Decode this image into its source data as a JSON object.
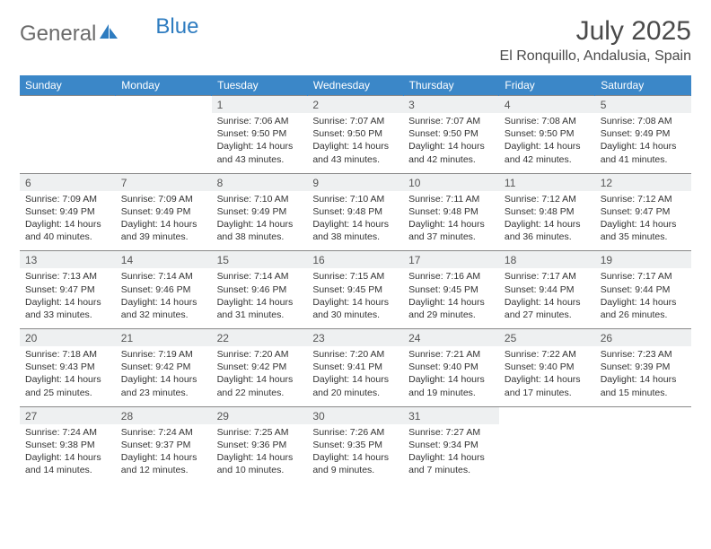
{
  "logo": {
    "textGray": "General",
    "textBlue": "Blue"
  },
  "title": "July 2025",
  "location": "El Ronquillo, Andalusia, Spain",
  "colors": {
    "headerBg": "#3b87c8",
    "daynumBg": "#eef0f1",
    "bodyText": "#333333",
    "titleText": "#4a4a4a",
    "logoGray": "#6b6b6b",
    "logoBlue": "#2e7cc0",
    "border": "#888888"
  },
  "dayHeaders": [
    "Sunday",
    "Monday",
    "Tuesday",
    "Wednesday",
    "Thursday",
    "Friday",
    "Saturday"
  ],
  "weeks": [
    [
      null,
      null,
      {
        "n": "1",
        "sunrise": "7:06 AM",
        "sunset": "9:50 PM",
        "daylight": "14 hours and 43 minutes."
      },
      {
        "n": "2",
        "sunrise": "7:07 AM",
        "sunset": "9:50 PM",
        "daylight": "14 hours and 43 minutes."
      },
      {
        "n": "3",
        "sunrise": "7:07 AM",
        "sunset": "9:50 PM",
        "daylight": "14 hours and 42 minutes."
      },
      {
        "n": "4",
        "sunrise": "7:08 AM",
        "sunset": "9:50 PM",
        "daylight": "14 hours and 42 minutes."
      },
      {
        "n": "5",
        "sunrise": "7:08 AM",
        "sunset": "9:49 PM",
        "daylight": "14 hours and 41 minutes."
      }
    ],
    [
      {
        "n": "6",
        "sunrise": "7:09 AM",
        "sunset": "9:49 PM",
        "daylight": "14 hours and 40 minutes."
      },
      {
        "n": "7",
        "sunrise": "7:09 AM",
        "sunset": "9:49 PM",
        "daylight": "14 hours and 39 minutes."
      },
      {
        "n": "8",
        "sunrise": "7:10 AM",
        "sunset": "9:49 PM",
        "daylight": "14 hours and 38 minutes."
      },
      {
        "n": "9",
        "sunrise": "7:10 AM",
        "sunset": "9:48 PM",
        "daylight": "14 hours and 38 minutes."
      },
      {
        "n": "10",
        "sunrise": "7:11 AM",
        "sunset": "9:48 PM",
        "daylight": "14 hours and 37 minutes."
      },
      {
        "n": "11",
        "sunrise": "7:12 AM",
        "sunset": "9:48 PM",
        "daylight": "14 hours and 36 minutes."
      },
      {
        "n": "12",
        "sunrise": "7:12 AM",
        "sunset": "9:47 PM",
        "daylight": "14 hours and 35 minutes."
      }
    ],
    [
      {
        "n": "13",
        "sunrise": "7:13 AM",
        "sunset": "9:47 PM",
        "daylight": "14 hours and 33 minutes."
      },
      {
        "n": "14",
        "sunrise": "7:14 AM",
        "sunset": "9:46 PM",
        "daylight": "14 hours and 32 minutes."
      },
      {
        "n": "15",
        "sunrise": "7:14 AM",
        "sunset": "9:46 PM",
        "daylight": "14 hours and 31 minutes."
      },
      {
        "n": "16",
        "sunrise": "7:15 AM",
        "sunset": "9:45 PM",
        "daylight": "14 hours and 30 minutes."
      },
      {
        "n": "17",
        "sunrise": "7:16 AM",
        "sunset": "9:45 PM",
        "daylight": "14 hours and 29 minutes."
      },
      {
        "n": "18",
        "sunrise": "7:17 AM",
        "sunset": "9:44 PM",
        "daylight": "14 hours and 27 minutes."
      },
      {
        "n": "19",
        "sunrise": "7:17 AM",
        "sunset": "9:44 PM",
        "daylight": "14 hours and 26 minutes."
      }
    ],
    [
      {
        "n": "20",
        "sunrise": "7:18 AM",
        "sunset": "9:43 PM",
        "daylight": "14 hours and 25 minutes."
      },
      {
        "n": "21",
        "sunrise": "7:19 AM",
        "sunset": "9:42 PM",
        "daylight": "14 hours and 23 minutes."
      },
      {
        "n": "22",
        "sunrise": "7:20 AM",
        "sunset": "9:42 PM",
        "daylight": "14 hours and 22 minutes."
      },
      {
        "n": "23",
        "sunrise": "7:20 AM",
        "sunset": "9:41 PM",
        "daylight": "14 hours and 20 minutes."
      },
      {
        "n": "24",
        "sunrise": "7:21 AM",
        "sunset": "9:40 PM",
        "daylight": "14 hours and 19 minutes."
      },
      {
        "n": "25",
        "sunrise": "7:22 AM",
        "sunset": "9:40 PM",
        "daylight": "14 hours and 17 minutes."
      },
      {
        "n": "26",
        "sunrise": "7:23 AM",
        "sunset": "9:39 PM",
        "daylight": "14 hours and 15 minutes."
      }
    ],
    [
      {
        "n": "27",
        "sunrise": "7:24 AM",
        "sunset": "9:38 PM",
        "daylight": "14 hours and 14 minutes."
      },
      {
        "n": "28",
        "sunrise": "7:24 AM",
        "sunset": "9:37 PM",
        "daylight": "14 hours and 12 minutes."
      },
      {
        "n": "29",
        "sunrise": "7:25 AM",
        "sunset": "9:36 PM",
        "daylight": "14 hours and 10 minutes."
      },
      {
        "n": "30",
        "sunrise": "7:26 AM",
        "sunset": "9:35 PM",
        "daylight": "14 hours and 9 minutes."
      },
      {
        "n": "31",
        "sunrise": "7:27 AM",
        "sunset": "9:34 PM",
        "daylight": "14 hours and 7 minutes."
      },
      null,
      null
    ]
  ]
}
